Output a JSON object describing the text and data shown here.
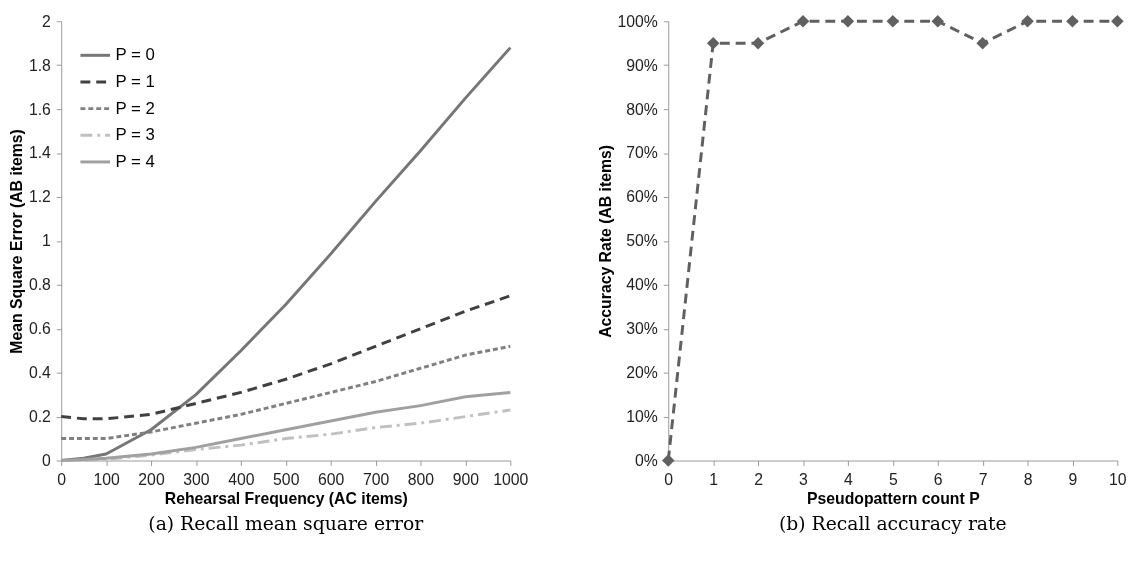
{
  "chart_data": [
    {
      "type": "line",
      "annotations": [
        "(a) Recall mean square error"
      ],
      "xlabel": "Rehearsal Frequency (AC items)",
      "ylabel": "Mean Square Error (AB items)",
      "x": [
        0,
        50,
        100,
        200,
        300,
        400,
        500,
        600,
        700,
        800,
        900,
        1000
      ],
      "xlim": [
        0,
        1000
      ],
      "xticks": [
        0,
        100,
        200,
        300,
        400,
        500,
        600,
        700,
        800,
        900,
        1000
      ],
      "ylim": [
        0,
        2
      ],
      "yticks": [
        0,
        0.2,
        0.4,
        0.6,
        0.8,
        1,
        1.2,
        1.4,
        1.6,
        1.8,
        2
      ],
      "grid": false,
      "legend": "top left",
      "series": [
        {
          "name": "P = 0",
          "color": "#767676",
          "line_style": "solid",
          "values": [
            0,
            0.01,
            0.03,
            0.14,
            0.3,
            0.5,
            0.71,
            0.94,
            1.18,
            1.41,
            1.65,
            1.88
          ]
        },
        {
          "name": "P = 1",
          "color": "#404040",
          "line_style": "dashed",
          "values": [
            0.2,
            0.19,
            0.19,
            0.21,
            0.26,
            0.31,
            0.37,
            0.44,
            0.52,
            0.6,
            0.68,
            0.75
          ]
        },
        {
          "name": "P = 2",
          "color": "#808080",
          "line_style": "dotted",
          "values": [
            0.1,
            0.1,
            0.1,
            0.13,
            0.17,
            0.21,
            0.26,
            0.31,
            0.36,
            0.42,
            0.48,
            0.52
          ]
        },
        {
          "name": "P = 3",
          "color": "#c0c0c0",
          "line_style": "dashdot",
          "values": [
            0,
            0,
            0.005,
            0.025,
            0.05,
            0.07,
            0.1,
            0.12,
            0.15,
            0.17,
            0.2,
            0.23
          ]
        },
        {
          "name": "P = 4",
          "color": "#a0a0a0",
          "line_style": "solid",
          "values": [
            0,
            0.005,
            0.01,
            0.03,
            0.06,
            0.1,
            0.14,
            0.18,
            0.22,
            0.25,
            0.29,
            0.31
          ]
        }
      ]
    },
    {
      "type": "line",
      "annotations": [
        "(b) Recall accuracy rate"
      ],
      "xlabel": "Pseudopattern count P",
      "ylabel": "Accuracy Rate (AB items)",
      "x": [
        0,
        1,
        2,
        3,
        4,
        5,
        6,
        7,
        8,
        9,
        10
      ],
      "xlim": [
        0,
        10
      ],
      "xticks": [
        0,
        1,
        2,
        3,
        4,
        5,
        6,
        7,
        8,
        9,
        10
      ],
      "ylim": [
        0,
        100
      ],
      "yticks": [
        {
          "value": 0,
          "label": "0%"
        },
        {
          "value": 10,
          "label": "10%"
        },
        {
          "value": 20,
          "label": "20%"
        },
        {
          "value": 30,
          "label": "30%"
        },
        {
          "value": 40,
          "label": "40%"
        },
        {
          "value": 50,
          "label": "50%"
        },
        {
          "value": 60,
          "label": "60%"
        },
        {
          "value": 70,
          "label": "70%"
        },
        {
          "value": 80,
          "label": "80%"
        },
        {
          "value": 90,
          "label": "90%"
        },
        {
          "value": 100,
          "label": "100%"
        }
      ],
      "grid": false,
      "marker": "diamond",
      "line_style": "dashed",
      "series": [
        {
          "color": "#606060",
          "values": [
            0,
            95,
            95,
            100,
            100,
            100,
            100,
            95,
            100,
            100,
            100
          ]
        }
      ]
    }
  ]
}
